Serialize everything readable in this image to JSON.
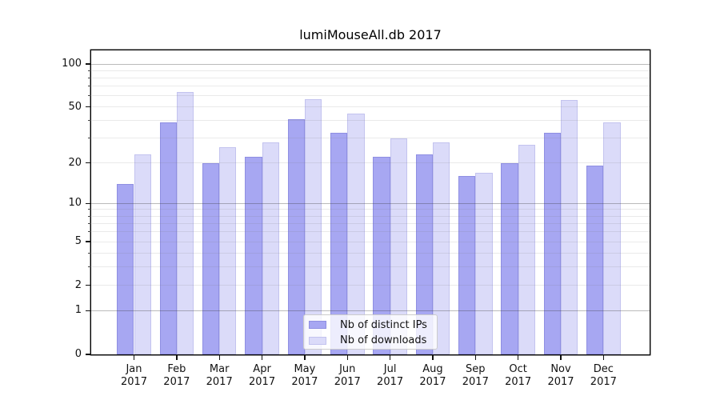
{
  "chart_data": {
    "type": "bar",
    "title": "lumiMouseAll.db 2017",
    "categories": [
      "Jan",
      "Feb",
      "Mar",
      "Apr",
      "May",
      "Jun",
      "Jul",
      "Aug",
      "Sep",
      "Oct",
      "Nov",
      "Dec"
    ],
    "year": "2017",
    "series": [
      {
        "name": "Nb of distinct IPs",
        "color": "#a7a7f2",
        "edge_color": "#8f8fe2",
        "values": [
          14,
          39,
          20,
          22,
          41,
          33,
          22,
          23,
          16,
          20,
          33,
          19
        ]
      },
      {
        "name": "Nb of downloads",
        "color": "#dbdbf9",
        "edge_color": "#c3c3ef",
        "values": [
          23,
          64,
          26,
          28,
          57,
          45,
          30,
          28,
          17,
          27,
          56,
          39
        ]
      }
    ],
    "xlabel": "",
    "ylabel": "",
    "scale": "log1p",
    "ylim": [
      0,
      124.4
    ],
    "y_ticks": [
      0,
      1,
      2,
      5,
      10,
      20,
      50,
      100
    ],
    "grid_major": [
      1,
      10,
      100
    ],
    "grid_minor": [
      2,
      3,
      4,
      5,
      6,
      7,
      8,
      9,
      20,
      30,
      40,
      50,
      60,
      70,
      80,
      90
    ],
    "grid": "on",
    "legend_position": "lower center"
  },
  "colors": {
    "background": "#ffffff",
    "spine": "#000000",
    "text": "#111111",
    "major_grid": "rgba(60,60,60,0.35)",
    "minor_grid": "rgba(125,125,125,0.16)"
  }
}
